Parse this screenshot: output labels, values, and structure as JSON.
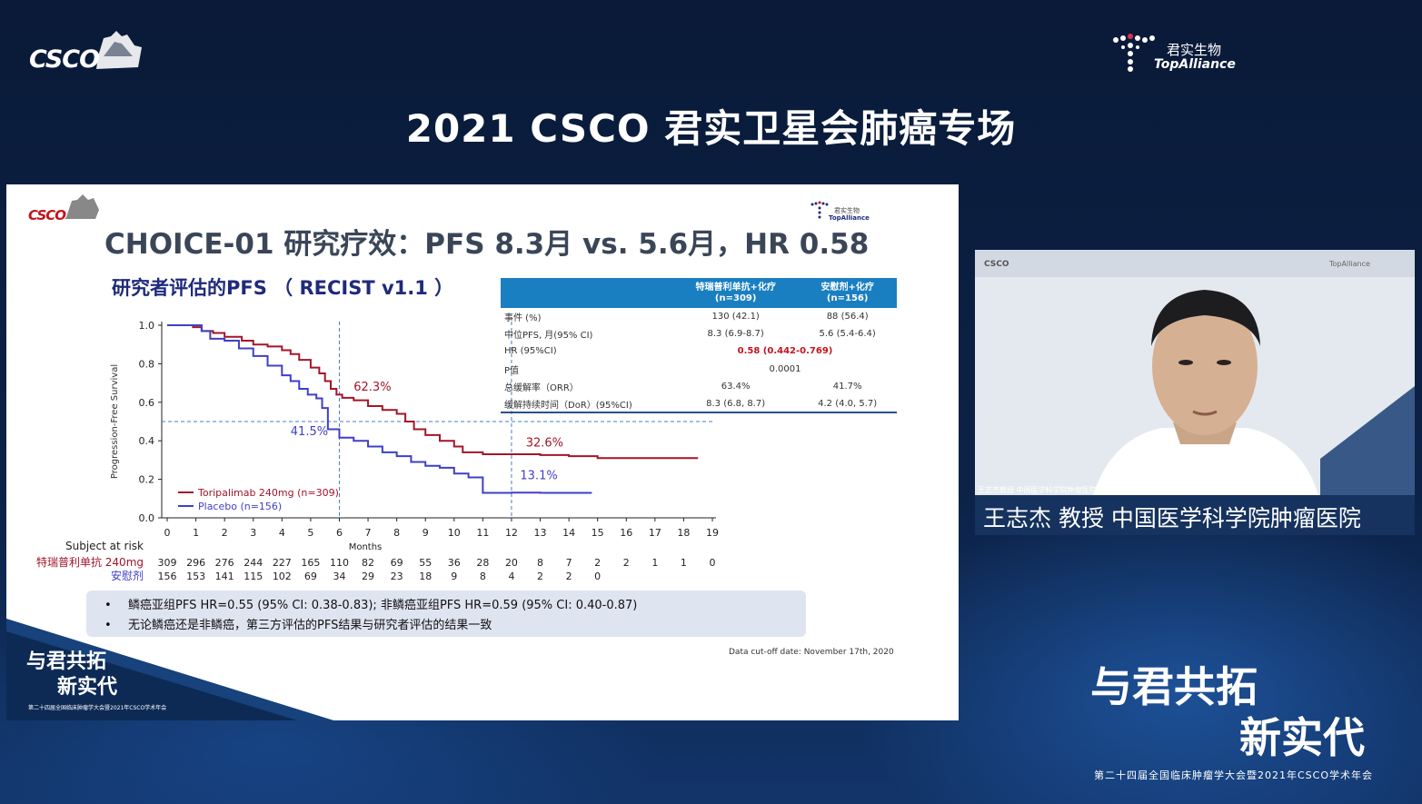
{
  "header": {
    "csco_logo": "CSCO",
    "sponsor_cn": "君实生物",
    "sponsor_en": "TopAlliance",
    "title": "2021 CSCO 君实卫星会肺癌专场"
  },
  "slide": {
    "csco_logo": "CSCO",
    "sponsor_cn": "君实生物",
    "sponsor_en": "TopAlliance",
    "title": "CHOICE-01 研究疗效：PFS 8.3月 vs. 5.6月，HR 0.58",
    "subtitle": "研究者评估的PFS （ RECIST v1.1 ）",
    "table": {
      "headers": [
        "",
        "特瑞普利单抗+化疗\n(n=309)",
        "安慰剂+化疗\n(n=156)"
      ],
      "rows": [
        {
          "label": "事件 (%)",
          "a": "130 (42.1)",
          "b": "88 (56.4)"
        },
        {
          "label": "中位PFS, 月(95% CI)",
          "a": "8.3 (6.9-8.7)",
          "b": "5.6 (5.4-6.4)"
        },
        {
          "label": "HR (95%CI)",
          "merged": "0.58 (0.442-0.769)"
        },
        {
          "label": "P值",
          "merged": "0.0001"
        },
        {
          "label": "总缓解率（ORR）",
          "a": "63.4%",
          "b": "41.7%"
        },
        {
          "label": "缓解持续时间（DoR）(95%CI)",
          "a": "8.3 (6.8, 8.7)",
          "b": "4.2 (4.0, 5.7)"
        }
      ]
    },
    "notes": [
      "鳞癌亚组PFS HR=0.55 (95% CI: 0.38-0.83); 非鳞癌亚组PFS HR=0.59 (95% CI: 0.40-0.87)",
      "无论鳞癌还是非鳞癌，第三方评估的PFS结果与研究者评估的结果一致"
    ],
    "note_bullet": "•",
    "cutoff": "Data cut-off date: November 17th, 2020",
    "slogan_line1": "与君共拓",
    "slogan_line2": "新实代",
    "slogan_sub": "第二十四届全国临床肿瘤学大会暨2021年CSCO学术年会"
  },
  "chart_data": {
    "type": "line",
    "ylabel": "Progression-Free Survival",
    "xlabel": "Months",
    "xlim": [
      0,
      19
    ],
    "ylim": [
      0,
      1.0
    ],
    "xticks": [
      0,
      1,
      2,
      3,
      4,
      5,
      6,
      7,
      8,
      9,
      10,
      11,
      12,
      13,
      14,
      15,
      16,
      17,
      18,
      19
    ],
    "yticks": [
      "0.0",
      "0.2",
      "0.4",
      "0.6",
      "0.8",
      "1.0"
    ],
    "reference_lines": {
      "x": [
        6,
        12
      ],
      "y": [
        0.5
      ]
    },
    "series": [
      {
        "name": "Toripalimab 240mg (n=309)",
        "color": "#a3152a",
        "step": true,
        "x": [
          0,
          0.9,
          1.2,
          1.6,
          2.0,
          2.6,
          3.0,
          3.5,
          4.0,
          4.3,
          4.6,
          5.0,
          5.3,
          5.5,
          5.7,
          5.9,
          6.1,
          6.5,
          7.0,
          7.5,
          8.0,
          8.3,
          8.6,
          9.0,
          9.5,
          10.0,
          10.3,
          11.0,
          12.0,
          13.0,
          14.0,
          15.0,
          16.0,
          18.5
        ],
        "y": [
          1.0,
          0.99,
          0.97,
          0.96,
          0.94,
          0.92,
          0.9,
          0.89,
          0.87,
          0.85,
          0.82,
          0.78,
          0.75,
          0.71,
          0.67,
          0.64,
          0.623,
          0.61,
          0.58,
          0.56,
          0.54,
          0.5,
          0.46,
          0.43,
          0.4,
          0.37,
          0.34,
          0.33,
          0.33,
          0.326,
          0.32,
          0.31,
          0.31,
          0.31
        ]
      },
      {
        "name": "Placebo (n=156)",
        "color": "#3f3fc8",
        "step": true,
        "x": [
          0,
          1.2,
          1.5,
          2.0,
          2.5,
          3.0,
          3.5,
          4.0,
          4.3,
          4.6,
          4.9,
          5.2,
          5.4,
          5.6,
          6.0,
          6.5,
          7.0,
          7.5,
          8.0,
          8.5,
          9.0,
          9.5,
          10.0,
          10.5,
          11.0,
          12.0,
          13.0,
          14.0,
          14.8
        ],
        "y": [
          1.0,
          0.97,
          0.93,
          0.92,
          0.88,
          0.84,
          0.79,
          0.74,
          0.71,
          0.67,
          0.64,
          0.62,
          0.57,
          0.46,
          0.416,
          0.4,
          0.37,
          0.34,
          0.32,
          0.29,
          0.27,
          0.26,
          0.23,
          0.21,
          0.13,
          0.131,
          0.13,
          0.13,
          0.13
        ]
      }
    ],
    "annotations": [
      {
        "text": "62.3%",
        "series": 0,
        "x": 6.5,
        "y": 0.66
      },
      {
        "text": "41.5%",
        "series": 1,
        "x": 4.3,
        "y": 0.43
      },
      {
        "text": "32.6%",
        "series": 0,
        "x": 12.5,
        "y": 0.37
      },
      {
        "text": "13.1%",
        "series": 1,
        "x": 12.3,
        "y": 0.2
      }
    ],
    "risk_table": {
      "title": "Subject at risk",
      "rows": [
        {
          "label": "特瑞普利单抗 240mg",
          "color": "#a3152a",
          "values": [
            "309",
            "296",
            "276",
            "244",
            "227",
            "165",
            "110",
            "82",
            "69",
            "55",
            "36",
            "28",
            "20",
            "8",
            "7",
            "2",
            "2",
            "1",
            "1",
            "0"
          ]
        },
        {
          "label": "安慰剂",
          "color": "#3f3fc8",
          "values": [
            "156",
            "153",
            "141",
            "115",
            "102",
            "69",
            "34",
            "29",
            "23",
            "18",
            "9",
            "8",
            "4",
            "2",
            "2",
            "0"
          ]
        }
      ]
    }
  },
  "video": {
    "tag": "王志杰教授 中国医学科学院肿瘤医院",
    "caption": "王志杰  教授  中国医学科学院肿瘤医院"
  },
  "footer": {
    "slogan_line1": "与君共拓",
    "slogan_line2": "新实代",
    "slogan_sub": "第二十四届全国临床肿瘤学大会暨2021年CSCO学术年会"
  }
}
